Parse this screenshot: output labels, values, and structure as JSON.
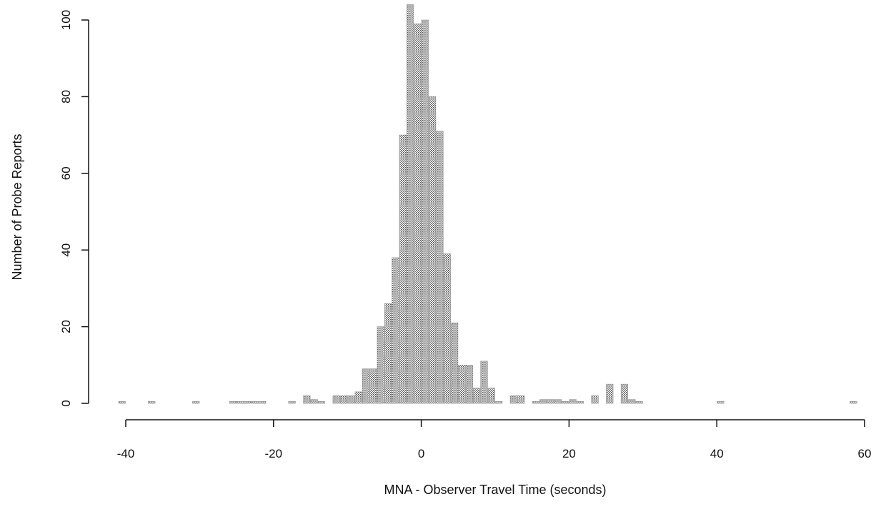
{
  "chart_data": {
    "type": "bar",
    "title": "",
    "xlabel": "MNA - Observer Travel Time (seconds)",
    "ylabel": "Number of Probe Reports",
    "xlim": [
      -40,
      60
    ],
    "ylim": [
      0,
      100
    ],
    "x_ticks": [
      -40,
      -20,
      0,
      20,
      40,
      60
    ],
    "y_ticks": [
      0,
      20,
      40,
      60,
      80,
      100
    ],
    "bin_width": 1,
    "grid": false,
    "legend": "none",
    "bar_color": "#8c8c8c",
    "bars": [
      {
        "x": -41,
        "count": 0.5
      },
      {
        "x": -37,
        "count": 0.5
      },
      {
        "x": -31,
        "count": 0.5
      },
      {
        "x": -26,
        "count": 0.5
      },
      {
        "x": -25,
        "count": 0.5
      },
      {
        "x": -24,
        "count": 0.5
      },
      {
        "x": -23,
        "count": 0.5
      },
      {
        "x": -22,
        "count": 0.5
      },
      {
        "x": -18,
        "count": 0.5
      },
      {
        "x": -16,
        "count": 2
      },
      {
        "x": -15,
        "count": 1
      },
      {
        "x": -14,
        "count": 0.5
      },
      {
        "x": -12,
        "count": 2
      },
      {
        "x": -11,
        "count": 2
      },
      {
        "x": -10,
        "count": 2
      },
      {
        "x": -9,
        "count": 3
      },
      {
        "x": -8,
        "count": 9
      },
      {
        "x": -7,
        "count": 9
      },
      {
        "x": -6,
        "count": 20
      },
      {
        "x": -5,
        "count": 26
      },
      {
        "x": -4,
        "count": 38
      },
      {
        "x": -3,
        "count": 70
      },
      {
        "x": -2,
        "count": 104
      },
      {
        "x": -1,
        "count": 99
      },
      {
        "x": 0,
        "count": 100
      },
      {
        "x": 1,
        "count": 80
      },
      {
        "x": 2,
        "count": 71
      },
      {
        "x": 3,
        "count": 39
      },
      {
        "x": 4,
        "count": 21
      },
      {
        "x": 5,
        "count": 10
      },
      {
        "x": 6,
        "count": 10
      },
      {
        "x": 7,
        "count": 4
      },
      {
        "x": 8,
        "count": 11
      },
      {
        "x": 9,
        "count": 4
      },
      {
        "x": 10,
        "count": 0.5
      },
      {
        "x": 12,
        "count": 2
      },
      {
        "x": 13,
        "count": 2
      },
      {
        "x": 15,
        "count": 0.5
      },
      {
        "x": 16,
        "count": 1
      },
      {
        "x": 17,
        "count": 1
      },
      {
        "x": 18,
        "count": 1
      },
      {
        "x": 19,
        "count": 0.5
      },
      {
        "x": 20,
        "count": 1
      },
      {
        "x": 21,
        "count": 0.5
      },
      {
        "x": 23,
        "count": 2
      },
      {
        "x": 25,
        "count": 5
      },
      {
        "x": 27,
        "count": 5
      },
      {
        "x": 28,
        "count": 1
      },
      {
        "x": 29,
        "count": 0.5
      },
      {
        "x": 40,
        "count": 0.5
      },
      {
        "x": 58,
        "count": 0.5
      }
    ]
  }
}
